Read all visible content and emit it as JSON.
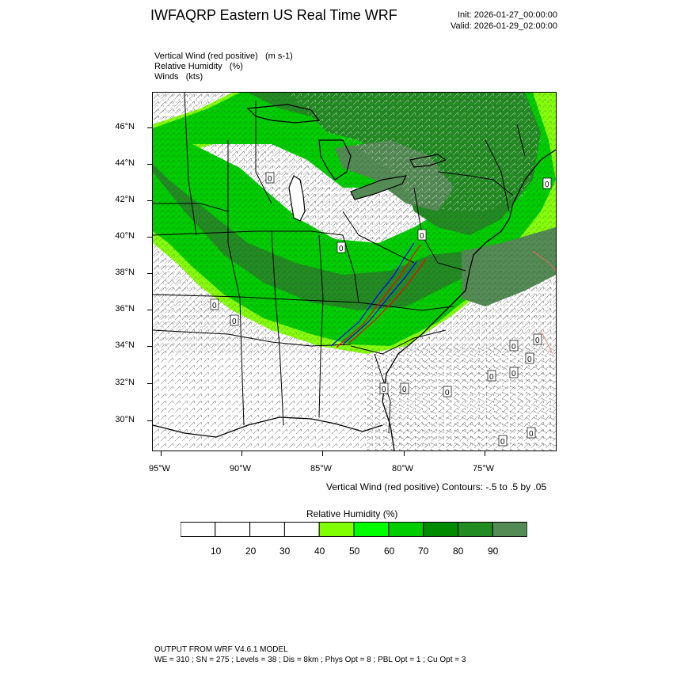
{
  "header": {
    "title": "IWFAQRP Eastern US Real Time WRF",
    "init": "Init: 2026-01-27_00:00:00",
    "valid": "Valid: 2026-01-29_02:00:00"
  },
  "fields": [
    {
      "name": "Vertical Wind (red positive)",
      "units": "(m s-1)"
    },
    {
      "name": "Relative Humidity",
      "units": "(%)"
    },
    {
      "name": "Winds",
      "units": "(kts)"
    }
  ],
  "axes": {
    "lat_labels": [
      "46°N",
      "44°N",
      "42°N",
      "40°N",
      "38°N",
      "36°N",
      "34°N",
      "32°N",
      "30°N"
    ],
    "lon_labels": [
      "95°W",
      "90°W",
      "85°W",
      "80°W",
      "75°W"
    ]
  },
  "contour_note": "Vertical Wind (red positive) Contours: -.5 to .5 by .05",
  "colorbar": {
    "title": "Relative Humidity  (%)",
    "labels": [
      "10",
      "20",
      "30",
      "40",
      "50",
      "60",
      "70",
      "80",
      "90"
    ],
    "colors": [
      "#ffffff",
      "#ffffff",
      "#ffffff",
      "#ffffff",
      "#7fff00",
      "#00ff00",
      "#00cd00",
      "#008b00",
      "#228b22",
      "#548b54"
    ]
  },
  "contour_labels": [
    "0",
    "0",
    "0",
    "0",
    "0",
    "0",
    "0",
    "0",
    "0",
    "0",
    "0",
    "0",
    "0",
    "0",
    "0",
    "0"
  ],
  "footer": {
    "line1": "OUTPUT FROM WRF V4.6.1 MODEL",
    "line2": "WE = 310 ; SN = 275 ; Levels = 38 ; Dis = 8km ; Phys Opt = 8 ; PBL Opt = 1 ; Cu Opt = 3"
  }
}
